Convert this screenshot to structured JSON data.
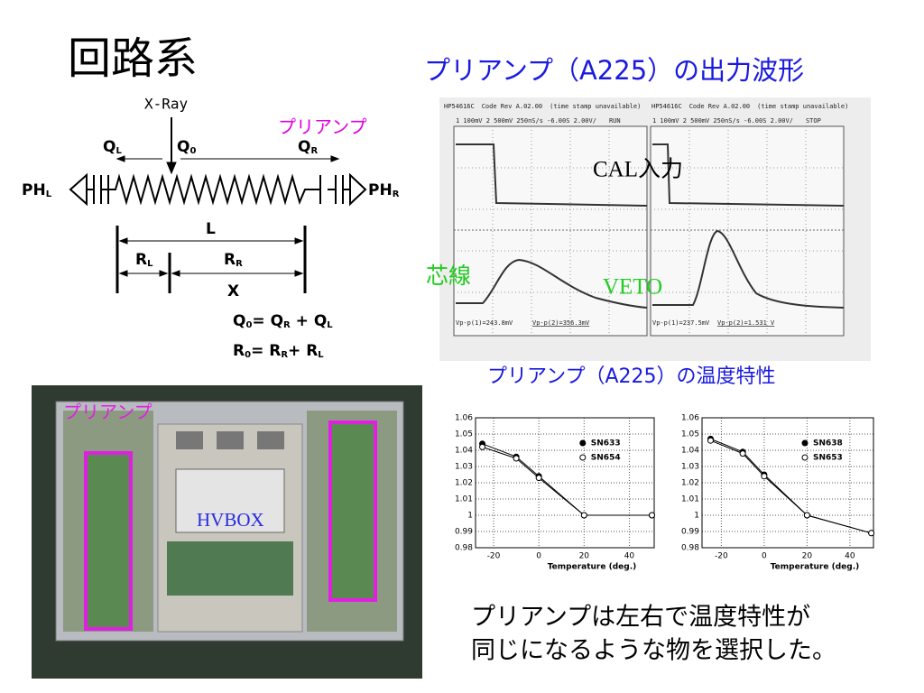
{
  "title": "回路系",
  "circuit": {
    "xray": "X-Ray",
    "preamp": "プリアンプ",
    "q_left": [
      "Q",
      "L"
    ],
    "q_zero": [
      "Q",
      "0"
    ],
    "q_right": [
      "Q",
      "R"
    ],
    "ph_left": [
      "PH",
      "L"
    ],
    "ph_right": [
      "PH",
      "R"
    ],
    "length": "L",
    "r_left": [
      "R",
      "L"
    ],
    "r_right": [
      "R",
      "R"
    ],
    "x": "X",
    "eq1": [
      "Q",
      "0",
      "= Q",
      "R",
      " + Q",
      "L"
    ],
    "eq2": [
      "R",
      "0",
      "= R",
      "R",
      "+ R",
      "L"
    ]
  },
  "waveform": {
    "heading": "プリアンプ（A225）の出力波形",
    "scope_left": {
      "model": "HP54616C",
      "rev": "Code Rev A.02.00",
      "stamp": "(time stamp unavailable)",
      "settings": "1 100mV  2 500mV  250nS/s  -6.00S  2.00V/",
      "state": "RUN",
      "vpp1": "Vp-p(1)=243.8mV",
      "vpp2": "Vp-p(2)=356.3mV"
    },
    "scope_right": {
      "model": "HP54616C",
      "rev": "Code Rev A.02.00",
      "stamp": "(time stamp unavailable)",
      "settings": "1 100mV  2 500mV  250nS/s  -6.00S  2.00V/",
      "state": "STOP",
      "vpp1": "Vp-p(1)=237.5mV",
      "vpp2": "Vp-p(2)=1.531 V"
    },
    "cal": "CAL入力",
    "core": "芯線",
    "veto": "VETO"
  },
  "photo": {
    "preamp": "プリアンプ",
    "hvbox": "HVBOX"
  },
  "temperature_heading": "プリアンプ（A225）の温度特性",
  "conclusion": [
    "プリアンプは左右で温度特性が",
    "同じになるような物を選択した。"
  ],
  "chart_data": [
    {
      "type": "line",
      "x_label": "Temperature (deg.)",
      "x": [
        -25,
        -10,
        0,
        20,
        50
      ],
      "xlim": [
        -28,
        51
      ],
      "xticks": [
        -20,
        0,
        20,
        40
      ],
      "ylim": [
        0.98,
        1.06
      ],
      "yticks": [
        0.98,
        0.99,
        1,
        1.01,
        1.02,
        1.03,
        1.04,
        1.05,
        1.06
      ],
      "grid": true,
      "series": [
        {
          "name": "SN633",
          "color": "#000000",
          "marker": "filled",
          "values": [
            1.044,
            1.036,
            1.024,
            1.0,
            1.0
          ]
        },
        {
          "name": "SN654",
          "color": "#000000",
          "marker": "open",
          "values": [
            1.042,
            1.035,
            1.023,
            1.0,
            1.0
          ]
        }
      ]
    },
    {
      "type": "line",
      "x_label": "Temperature (deg.)",
      "x": [
        -25,
        -10,
        0,
        20,
        50
      ],
      "xlim": [
        -29,
        51
      ],
      "xticks": [
        -20,
        0,
        20,
        40
      ],
      "ylim": [
        0.98,
        1.06
      ],
      "yticks": [
        0.98,
        0.99,
        1,
        1.01,
        1.02,
        1.03,
        1.04,
        1.05,
        1.06
      ],
      "grid": true,
      "series": [
        {
          "name": "SN638",
          "color": "#000000",
          "marker": "filled",
          "values": [
            1.047,
            1.039,
            1.025,
            1.0,
            0.989
          ]
        },
        {
          "name": "SN653",
          "color": "#000000",
          "marker": "open",
          "values": [
            1.046,
            1.038,
            1.024,
            1.0,
            0.989
          ]
        }
      ]
    }
  ]
}
